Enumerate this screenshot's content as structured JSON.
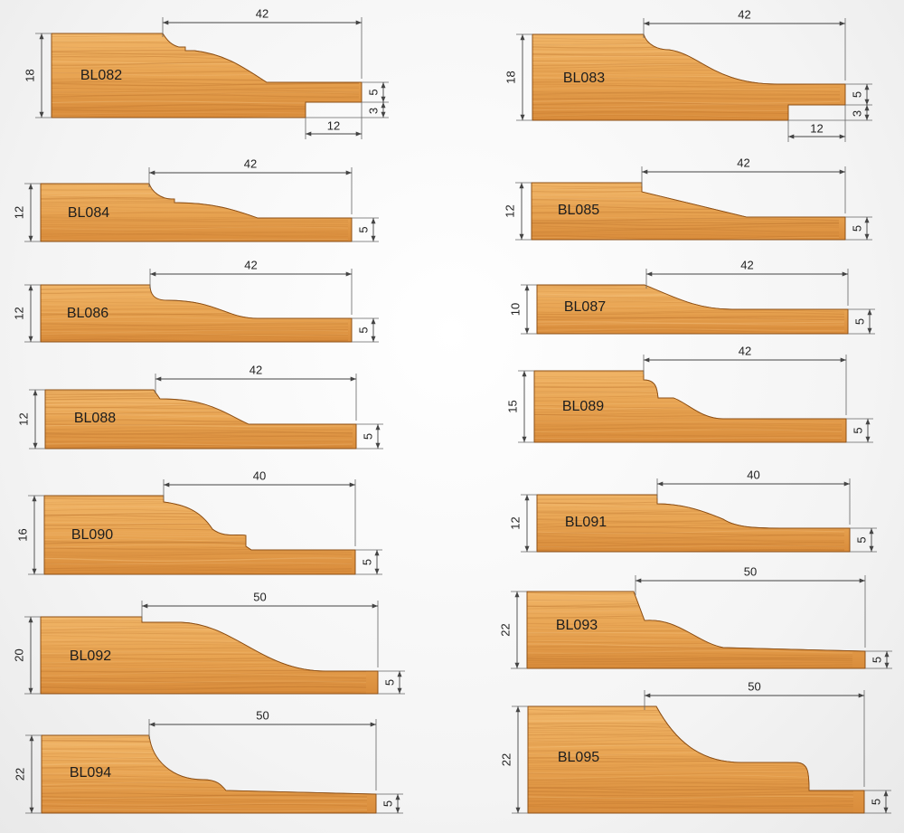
{
  "colors": {
    "wood_light": "#f0b466",
    "wood_mid": "#e39a45",
    "wood_dark": "#cf8434",
    "grain": "#b86f2a",
    "dimension": "#444444",
    "background": "#f2f2f2"
  },
  "profiles": [
    {
      "code": "BL082",
      "width": "42",
      "height": "18",
      "tongue": "5",
      "step": "3",
      "step_width": "12"
    },
    {
      "code": "BL083",
      "width": "42",
      "height": "18",
      "tongue": "5",
      "step": "3",
      "step_width": "12"
    },
    {
      "code": "BL084",
      "width": "42",
      "height": "12",
      "tongue": "5"
    },
    {
      "code": "BL085",
      "width": "42",
      "height": "12",
      "tongue": "5"
    },
    {
      "code": "BL086",
      "width": "42",
      "height": "12",
      "tongue": "5"
    },
    {
      "code": "BL087",
      "width": "42",
      "height": "10",
      "tongue": "5"
    },
    {
      "code": "BL088",
      "width": "42",
      "height": "12",
      "tongue": "5"
    },
    {
      "code": "BL089",
      "width": "42",
      "height": "15",
      "tongue": "5"
    },
    {
      "code": "BL090",
      "width": "40",
      "height": "16",
      "tongue": "5"
    },
    {
      "code": "BL091",
      "width": "40",
      "height": "12",
      "tongue": "5"
    },
    {
      "code": "BL092",
      "width": "50",
      "height": "20",
      "tongue": "5"
    },
    {
      "code": "BL093",
      "width": "50",
      "height": "22",
      "tongue": "5"
    },
    {
      "code": "BL094",
      "width": "50",
      "height": "22",
      "tongue": "5"
    },
    {
      "code": "BL095",
      "width": "50",
      "height": "22",
      "tongue": "5"
    }
  ]
}
